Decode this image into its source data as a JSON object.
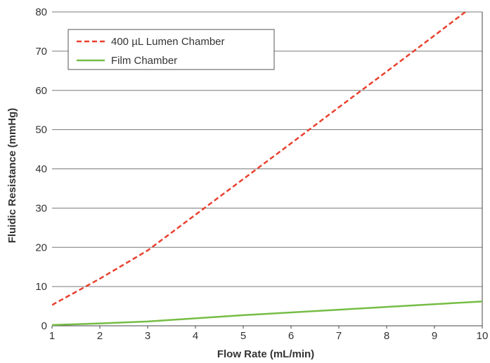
{
  "chart_data": {
    "type": "line",
    "title": "",
    "xlabel": "Flow Rate (mL/min)",
    "ylabel": "Fluidic Resistance (mmHg)",
    "xlim": [
      1,
      10
    ],
    "ylim": [
      0,
      80
    ],
    "x_ticks": [
      "1",
      "2",
      "3",
      "4",
      "5",
      "6",
      "7",
      "8",
      "9",
      "10"
    ],
    "y_ticks": [
      "0",
      "10",
      "20",
      "30",
      "40",
      "50",
      "60",
      "70",
      "80"
    ],
    "grid": "horizontal",
    "legend_position": "top-left",
    "series": [
      {
        "name": "400 µL Lumen Chamber",
        "color": "#e8412e",
        "style": "dashed",
        "x": [
          1,
          2,
          3,
          4,
          5,
          6,
          7,
          8,
          9,
          10
        ],
        "y": [
          5.3,
          12.0,
          19.2,
          28.3,
          37.4,
          46.5,
          55.7,
          64.8,
          74.0,
          83.3
        ]
      },
      {
        "name": "Film Chamber",
        "color": "#76bd45",
        "style": "solid",
        "x": [
          1,
          2,
          3,
          4,
          5,
          6,
          7,
          8,
          9,
          10
        ],
        "y": [
          0.2,
          0.6,
          1.1,
          1.9,
          2.7,
          3.4,
          4.1,
          4.8,
          5.5,
          6.2
        ]
      }
    ]
  }
}
